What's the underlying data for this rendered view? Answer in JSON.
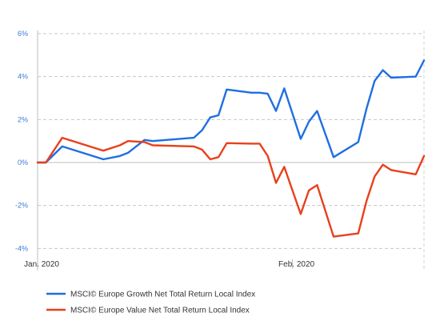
{
  "chart_data": {
    "type": "line",
    "title": "",
    "xlabel": "",
    "ylabel": "",
    "ylim": [
      -4.5,
      6
    ],
    "y_ticks": [
      -4,
      -2,
      0,
      2,
      4,
      6
    ],
    "y_tick_labels": [
      "-4%",
      "-2%",
      "0%",
      "2%",
      "4%",
      "6%"
    ],
    "x_tick_labels": [
      {
        "label": "Jan. 2020",
        "index": 0
      },
      {
        "label": "Feb. 2020",
        "index": 31
      }
    ],
    "grid": true,
    "legend_position": "bottom-left",
    "series": [
      {
        "name": "MSCI© Europe Growth Net Total Return Local Index",
        "color": "#1f6fe0",
        "values": [
          0,
          0,
          0.75,
          0.15,
          0.3,
          0.45,
          1.05,
          1.0,
          1.15,
          1.5,
          2.1,
          2.2,
          3.4,
          3.25,
          3.25,
          3.2,
          2.4,
          3.45,
          1.1,
          1.9,
          2.4,
          0.25,
          0.95,
          2.5,
          3.8,
          4.3,
          3.95,
          4.0,
          4.75
        ]
      },
      {
        "name": "MSCI© Europe Value Net Total Return Local Index",
        "color": "#e8401c",
        "values": [
          0,
          0,
          1.15,
          0.55,
          0.8,
          1.0,
          0.95,
          0.8,
          0.75,
          0.6,
          0.15,
          0.25,
          0.9,
          0.88,
          0.88,
          0.3,
          -0.95,
          -0.2,
          -2.4,
          -1.3,
          -1.05,
          -3.45,
          -3.3,
          -1.8,
          -0.65,
          -0.1,
          -0.35,
          -0.55,
          0.3
        ]
      }
    ],
    "x_index": [
      0,
      1,
      3,
      8,
      10,
      11,
      13,
      14,
      19,
      20,
      21,
      22,
      23,
      26,
      27,
      28,
      29,
      30,
      32,
      33,
      34,
      36,
      39,
      40,
      41,
      42,
      43,
      46,
      47
    ]
  }
}
